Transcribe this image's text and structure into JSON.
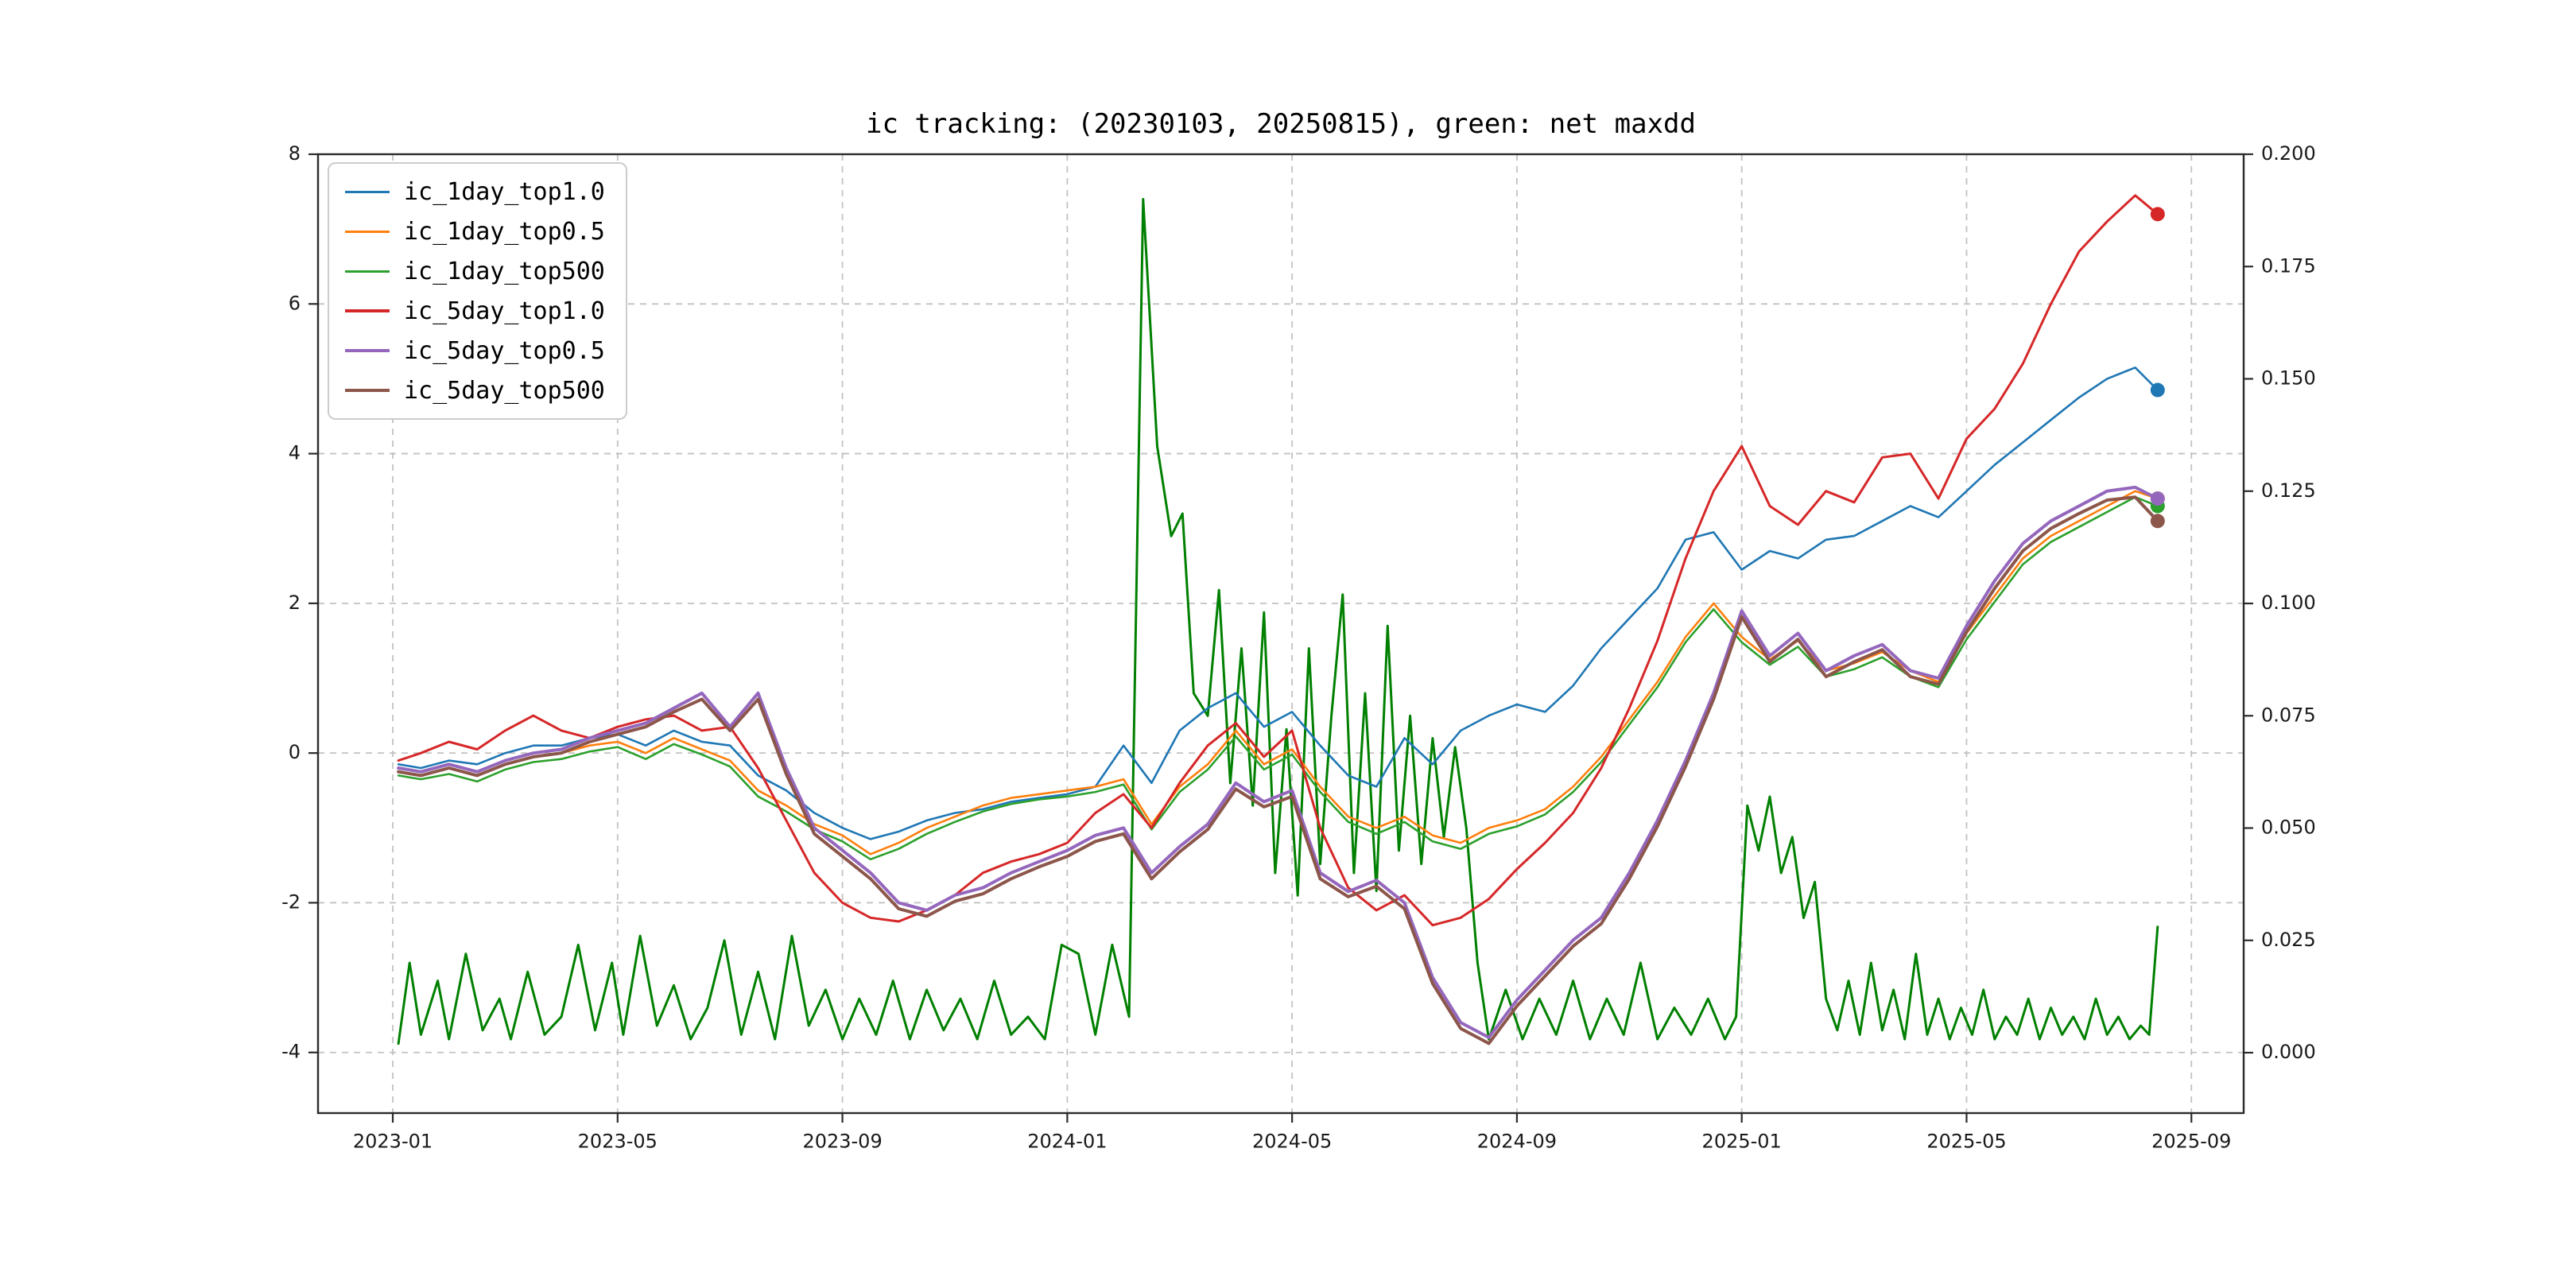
{
  "title": "ic tracking: (20230103, 20250815), green: net maxdd",
  "legend": {
    "items": [
      {
        "label": "ic_1day_top1.0",
        "color": "#1f77b4"
      },
      {
        "label": "ic_1day_top0.5",
        "color": "#ff7f0e"
      },
      {
        "label": "ic_1day_top500",
        "color": "#2ca02c"
      },
      {
        "label": "ic_5day_top1.0",
        "color": "#d62728"
      },
      {
        "label": "ic_5day_top0.5",
        "color": "#9467bd"
      },
      {
        "label": "ic_5day_top500",
        "color": "#8c564b"
      }
    ]
  },
  "axes": {
    "x": {
      "tick_months": [
        0,
        4,
        8,
        12,
        16,
        20,
        24,
        28,
        32
      ],
      "tick_labels": [
        "2023-01",
        "2023-05",
        "2023-09",
        "2024-01",
        "2024-05",
        "2024-09",
        "2025-01",
        "2025-05",
        "2025-09"
      ]
    },
    "y_left": {
      "tick_values": [
        -4,
        -2,
        0,
        2,
        4,
        6,
        8
      ],
      "tick_labels": [
        "-4",
        "-2",
        "0",
        "2",
        "4",
        "6",
        "8"
      ]
    },
    "y_right": {
      "tick_values": [
        0.0,
        0.025,
        0.05,
        0.075,
        0.1,
        0.125,
        0.15,
        0.175,
        0.2
      ],
      "tick_labels": [
        "0.000",
        "0.025",
        "0.050",
        "0.075",
        "0.100",
        "0.125",
        "0.150",
        "0.175",
        "0.200"
      ]
    }
  },
  "chart_data": {
    "type": "line",
    "title": "ic tracking: (20230103, 20250815), green: net maxdd",
    "date_range": [
      "20230103",
      "20250815"
    ],
    "x_unit": "months since 2023-01-01",
    "xlim_months": [
      -1.33,
      32.93
    ],
    "ylim_left": [
      -4.81,
      8.0
    ],
    "ylim_right": [
      -0.01345,
      0.2
    ],
    "grid": true,
    "legend_position": "upper left",
    "x": [
      0.1,
      0.5,
      1,
      1.5,
      2,
      2.5,
      3,
      3.5,
      4,
      4.5,
      5,
      5.5,
      6,
      6.5,
      7,
      7.5,
      8,
      8.5,
      9,
      9.5,
      10,
      10.5,
      11,
      11.5,
      12,
      12.5,
      13,
      13.5,
      14,
      14.5,
      15,
      15.5,
      16,
      16.5,
      17,
      17.5,
      18,
      18.5,
      19,
      19.5,
      20,
      20.5,
      21,
      21.5,
      22,
      22.5,
      23,
      23.5,
      24,
      24.5,
      25,
      25.5,
      26,
      26.5,
      27,
      27.5,
      28,
      28.5,
      29,
      29.5,
      30,
      30.5,
      31,
      31.4
    ],
    "series": [
      {
        "name": "ic_1day_top1.0",
        "color": "#1f77b4",
        "axis": "left",
        "width": 2.6,
        "end_dot": true,
        "values": [
          -0.15,
          -0.2,
          -0.1,
          -0.15,
          0.0,
          0.1,
          0.1,
          0.2,
          0.25,
          0.1,
          0.3,
          0.15,
          0.1,
          -0.3,
          -0.5,
          -0.8,
          -1.0,
          -1.15,
          -1.05,
          -0.9,
          -0.8,
          -0.75,
          -0.65,
          -0.6,
          -0.55,
          -0.45,
          0.1,
          -0.4,
          0.3,
          0.6,
          0.8,
          0.35,
          0.55,
          0.1,
          -0.3,
          -0.45,
          0.2,
          -0.15,
          0.3,
          0.5,
          0.65,
          0.55,
          0.9,
          1.4,
          1.8,
          2.2,
          2.85,
          2.95,
          2.45,
          2.7,
          2.6,
          2.85,
          2.9,
          3.1,
          3.3,
          3.15,
          3.5,
          3.85,
          4.15,
          4.45,
          4.75,
          5.0,
          5.15,
          4.85
        ]
      },
      {
        "name": "ic_1day_top0.5",
        "color": "#ff7f0e",
        "axis": "left",
        "width": 2.6,
        "end_dot": true,
        "values": [
          -0.25,
          -0.3,
          -0.2,
          -0.3,
          -0.15,
          -0.05,
          0.0,
          0.1,
          0.15,
          0.0,
          0.2,
          0.05,
          -0.1,
          -0.5,
          -0.7,
          -0.95,
          -1.1,
          -1.35,
          -1.2,
          -1.0,
          -0.85,
          -0.7,
          -0.6,
          -0.55,
          -0.5,
          -0.45,
          -0.35,
          -0.95,
          -0.45,
          -0.15,
          0.3,
          -0.15,
          0.05,
          -0.45,
          -0.85,
          -1.0,
          -0.85,
          -1.1,
          -1.2,
          -1.0,
          -0.9,
          -0.75,
          -0.45,
          -0.05,
          0.45,
          0.95,
          1.55,
          2.0,
          1.55,
          1.25,
          1.5,
          1.1,
          1.2,
          1.35,
          1.1,
          0.95,
          1.6,
          2.1,
          2.6,
          2.9,
          3.1,
          3.3,
          3.5,
          3.4
        ]
      },
      {
        "name": "ic_1day_top500",
        "color": "#2ca02c",
        "axis": "left",
        "width": 2.6,
        "end_dot": true,
        "values": [
          -0.3,
          -0.35,
          -0.28,
          -0.38,
          -0.22,
          -0.12,
          -0.08,
          0.02,
          0.08,
          -0.08,
          0.12,
          -0.02,
          -0.18,
          -0.58,
          -0.78,
          -1.02,
          -1.18,
          -1.42,
          -1.28,
          -1.08,
          -0.92,
          -0.78,
          -0.68,
          -0.62,
          -0.58,
          -0.52,
          -0.42,
          -1.02,
          -0.52,
          -0.22,
          0.22,
          -0.22,
          -0.02,
          -0.52,
          -0.92,
          -1.08,
          -0.92,
          -1.18,
          -1.28,
          -1.08,
          -0.98,
          -0.82,
          -0.52,
          -0.12,
          0.38,
          0.88,
          1.48,
          1.92,
          1.48,
          1.18,
          1.42,
          1.02,
          1.12,
          1.28,
          1.02,
          0.88,
          1.52,
          2.02,
          2.52,
          2.82,
          3.02,
          3.22,
          3.42,
          3.3
        ]
      },
      {
        "name": "ic_5day_top1.0",
        "color": "#d62728",
        "axis": "left",
        "width": 3.0,
        "end_dot": true,
        "values": [
          -0.1,
          0.0,
          0.15,
          0.05,
          0.3,
          0.5,
          0.3,
          0.2,
          0.35,
          0.45,
          0.5,
          0.3,
          0.35,
          -0.2,
          -0.9,
          -1.6,
          -2.0,
          -2.2,
          -2.25,
          -2.1,
          -1.9,
          -1.6,
          -1.45,
          -1.35,
          -1.2,
          -0.8,
          -0.55,
          -1.0,
          -0.4,
          0.1,
          0.4,
          -0.05,
          0.3,
          -1.0,
          -1.8,
          -2.1,
          -1.9,
          -2.3,
          -2.2,
          -1.95,
          -1.55,
          -1.2,
          -0.8,
          -0.2,
          0.6,
          1.5,
          2.6,
          3.5,
          4.1,
          3.3,
          3.05,
          3.5,
          3.35,
          3.95,
          4.0,
          3.4,
          4.2,
          4.6,
          5.2,
          6.0,
          6.7,
          7.1,
          7.45,
          7.2
        ]
      },
      {
        "name": "ic_5day_top0.5",
        "color": "#9467bd",
        "axis": "left",
        "width": 4.0,
        "end_dot": true,
        "values": [
          -0.2,
          -0.25,
          -0.15,
          -0.25,
          -0.1,
          0.0,
          0.05,
          0.2,
          0.3,
          0.4,
          0.6,
          0.8,
          0.35,
          0.8,
          -0.2,
          -1.0,
          -1.3,
          -1.6,
          -2.0,
          -2.1,
          -1.9,
          -1.8,
          -1.6,
          -1.45,
          -1.3,
          -1.1,
          -1.0,
          -1.6,
          -1.25,
          -0.95,
          -0.4,
          -0.65,
          -0.5,
          -1.6,
          -1.85,
          -1.7,
          -2.0,
          -3.0,
          -3.6,
          -3.8,
          -3.3,
          -2.9,
          -2.5,
          -2.2,
          -1.6,
          -0.9,
          -0.1,
          0.8,
          1.9,
          1.3,
          1.6,
          1.1,
          1.3,
          1.45,
          1.1,
          1.0,
          1.7,
          2.3,
          2.8,
          3.1,
          3.3,
          3.5,
          3.55,
          3.4
        ]
      },
      {
        "name": "ic_5day_top500",
        "color": "#8c564b",
        "axis": "left",
        "width": 4.0,
        "end_dot": true,
        "values": [
          -0.25,
          -0.3,
          -0.2,
          -0.3,
          -0.15,
          -0.05,
          0.0,
          0.15,
          0.25,
          0.35,
          0.55,
          0.72,
          0.3,
          0.72,
          -0.28,
          -1.08,
          -1.38,
          -1.68,
          -2.08,
          -2.18,
          -1.98,
          -1.88,
          -1.68,
          -1.52,
          -1.38,
          -1.18,
          -1.08,
          -1.68,
          -1.32,
          -1.02,
          -0.48,
          -0.72,
          -0.58,
          -1.68,
          -1.92,
          -1.78,
          -2.08,
          -3.08,
          -3.68,
          -3.88,
          -3.38,
          -2.98,
          -2.58,
          -2.28,
          -1.68,
          -0.98,
          -0.18,
          0.72,
          1.82,
          1.22,
          1.52,
          1.02,
          1.22,
          1.38,
          1.02,
          0.92,
          1.62,
          2.2,
          2.7,
          3.0,
          3.2,
          3.38,
          3.42,
          3.1
        ]
      }
    ],
    "maxdd_series": {
      "name": "net_maxdd",
      "color": "#008000",
      "axis": "right",
      "width": 3.0,
      "end_dot": false,
      "points": [
        [
          0.1,
          0.002
        ],
        [
          0.3,
          0.02
        ],
        [
          0.5,
          0.004
        ],
        [
          0.8,
          0.016
        ],
        [
          1.0,
          0.003
        ],
        [
          1.3,
          0.022
        ],
        [
          1.6,
          0.005
        ],
        [
          1.9,
          0.012
        ],
        [
          2.1,
          0.003
        ],
        [
          2.4,
          0.018
        ],
        [
          2.7,
          0.004
        ],
        [
          3.0,
          0.008
        ],
        [
          3.3,
          0.024
        ],
        [
          3.6,
          0.005
        ],
        [
          3.9,
          0.02
        ],
        [
          4.1,
          0.004
        ],
        [
          4.4,
          0.026
        ],
        [
          4.7,
          0.006
        ],
        [
          5.0,
          0.015
        ],
        [
          5.3,
          0.003
        ],
        [
          5.6,
          0.01
        ],
        [
          5.9,
          0.025
        ],
        [
          6.2,
          0.004
        ],
        [
          6.5,
          0.018
        ],
        [
          6.8,
          0.003
        ],
        [
          7.1,
          0.026
        ],
        [
          7.4,
          0.006
        ],
        [
          7.7,
          0.014
        ],
        [
          8.0,
          0.003
        ],
        [
          8.3,
          0.012
        ],
        [
          8.6,
          0.004
        ],
        [
          8.9,
          0.016
        ],
        [
          9.2,
          0.003
        ],
        [
          9.5,
          0.014
        ],
        [
          9.8,
          0.005
        ],
        [
          10.1,
          0.012
        ],
        [
          10.4,
          0.003
        ],
        [
          10.7,
          0.016
        ],
        [
          11.0,
          0.004
        ],
        [
          11.3,
          0.008
        ],
        [
          11.6,
          0.003
        ],
        [
          11.9,
          0.024
        ],
        [
          12.2,
          0.022
        ],
        [
          12.5,
          0.004
        ],
        [
          12.8,
          0.024
        ],
        [
          13.1,
          0.008
        ],
        [
          13.35,
          0.19
        ],
        [
          13.6,
          0.135
        ],
        [
          13.85,
          0.115
        ],
        [
          14.05,
          0.12
        ],
        [
          14.25,
          0.08
        ],
        [
          14.5,
          0.075
        ],
        [
          14.7,
          0.103
        ],
        [
          14.9,
          0.06
        ],
        [
          15.1,
          0.09
        ],
        [
          15.3,
          0.055
        ],
        [
          15.5,
          0.098
        ],
        [
          15.7,
          0.04
        ],
        [
          15.9,
          0.072
        ],
        [
          16.1,
          0.035
        ],
        [
          16.3,
          0.09
        ],
        [
          16.5,
          0.042
        ],
        [
          16.7,
          0.075
        ],
        [
          16.9,
          0.102
        ],
        [
          17.1,
          0.04
        ],
        [
          17.3,
          0.08
        ],
        [
          17.5,
          0.036
        ],
        [
          17.7,
          0.095
        ],
        [
          17.9,
          0.045
        ],
        [
          18.1,
          0.075
        ],
        [
          18.3,
          0.042
        ],
        [
          18.5,
          0.07
        ],
        [
          18.7,
          0.048
        ],
        [
          18.9,
          0.068
        ],
        [
          19.1,
          0.05
        ],
        [
          19.3,
          0.02
        ],
        [
          19.5,
          0.003
        ],
        [
          19.8,
          0.014
        ],
        [
          20.1,
          0.003
        ],
        [
          20.4,
          0.012
        ],
        [
          20.7,
          0.004
        ],
        [
          21.0,
          0.016
        ],
        [
          21.3,
          0.003
        ],
        [
          21.6,
          0.012
        ],
        [
          21.9,
          0.004
        ],
        [
          22.2,
          0.02
        ],
        [
          22.5,
          0.003
        ],
        [
          22.8,
          0.01
        ],
        [
          23.1,
          0.004
        ],
        [
          23.4,
          0.012
        ],
        [
          23.7,
          0.003
        ],
        [
          23.9,
          0.008
        ],
        [
          24.1,
          0.055
        ],
        [
          24.3,
          0.045
        ],
        [
          24.5,
          0.057
        ],
        [
          24.7,
          0.04
        ],
        [
          24.9,
          0.048
        ],
        [
          25.1,
          0.03
        ],
        [
          25.3,
          0.038
        ],
        [
          25.5,
          0.012
        ],
        [
          25.7,
          0.005
        ],
        [
          25.9,
          0.016
        ],
        [
          26.1,
          0.004
        ],
        [
          26.3,
          0.02
        ],
        [
          26.5,
          0.005
        ],
        [
          26.7,
          0.014
        ],
        [
          26.9,
          0.003
        ],
        [
          27.1,
          0.022
        ],
        [
          27.3,
          0.004
        ],
        [
          27.5,
          0.012
        ],
        [
          27.7,
          0.003
        ],
        [
          27.9,
          0.01
        ],
        [
          28.1,
          0.004
        ],
        [
          28.3,
          0.014
        ],
        [
          28.5,
          0.003
        ],
        [
          28.7,
          0.008
        ],
        [
          28.9,
          0.004
        ],
        [
          29.1,
          0.012
        ],
        [
          29.3,
          0.003
        ],
        [
          29.5,
          0.01
        ],
        [
          29.7,
          0.004
        ],
        [
          29.9,
          0.008
        ],
        [
          30.1,
          0.003
        ],
        [
          30.3,
          0.012
        ],
        [
          30.5,
          0.004
        ],
        [
          30.7,
          0.008
        ],
        [
          30.9,
          0.003
        ],
        [
          31.1,
          0.006
        ],
        [
          31.25,
          0.004
        ],
        [
          31.4,
          0.028
        ]
      ]
    }
  }
}
